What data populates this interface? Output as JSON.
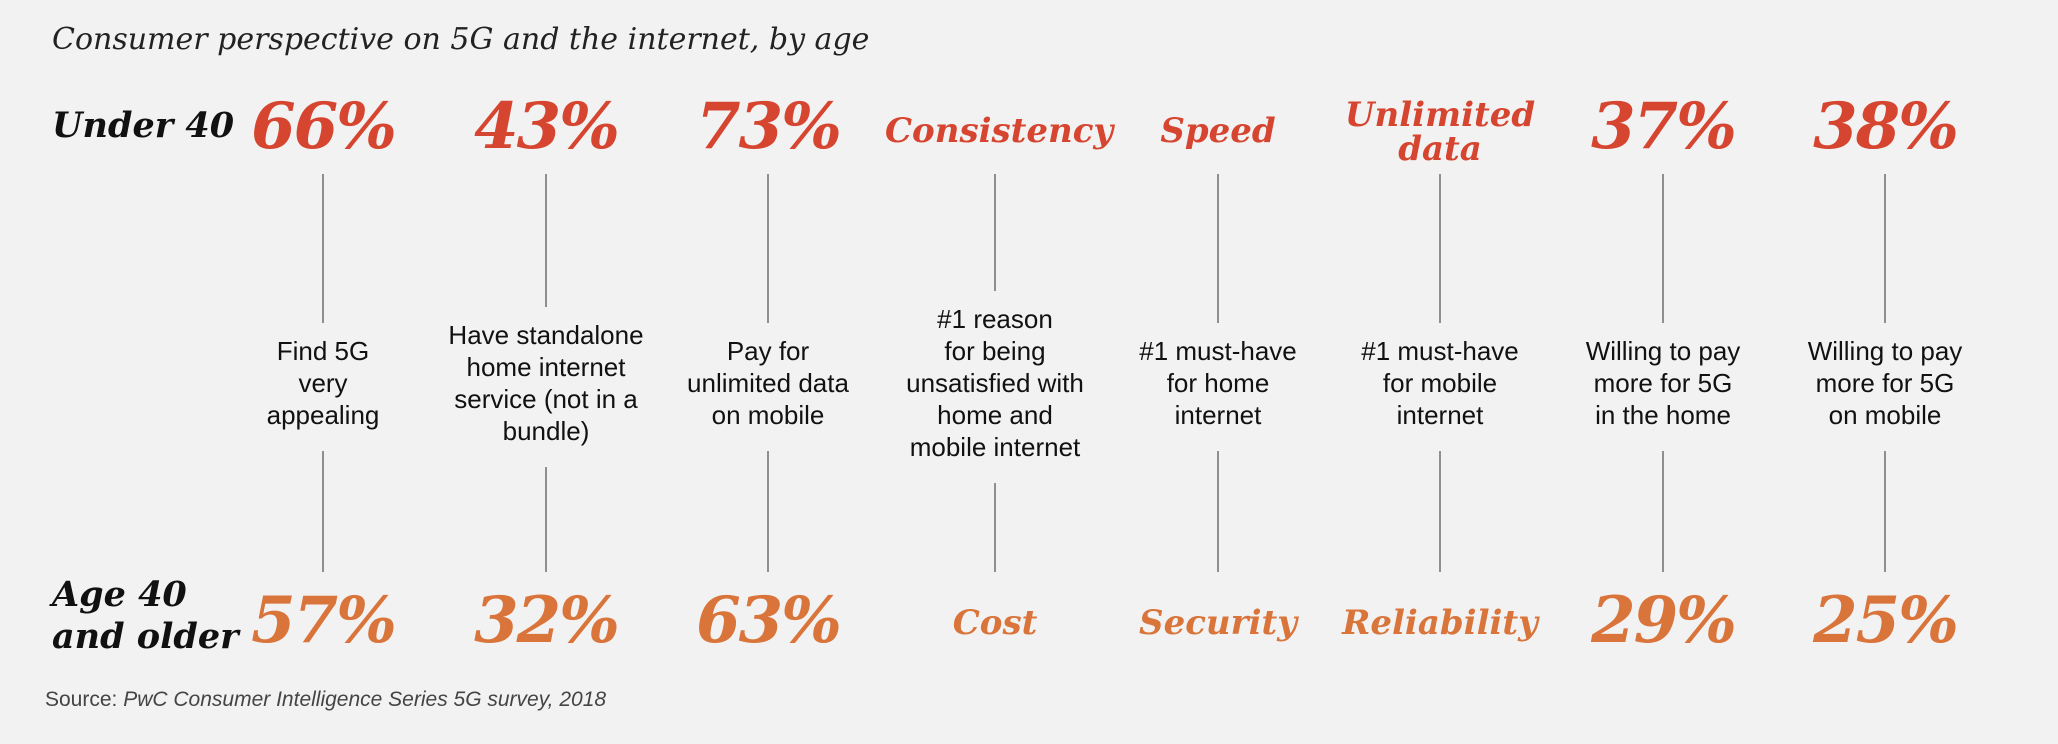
{
  "title": "Consumer perspective on 5G and the internet, by age",
  "row_labels": {
    "top": "Under 40",
    "bottom_line1": "Age 40",
    "bottom_line2": "and older"
  },
  "source": {
    "prefix": "Source: ",
    "text": "PwC Consumer Intelligence Series 5G survey, 2018"
  },
  "colors": {
    "under_40": "#d6452f",
    "age_40_older": "#d9743a",
    "connector": "#8f8f8f",
    "background": "#f2f2f2"
  },
  "chart_data": {
    "type": "table",
    "title": "Consumer perspective on 5G and the internet, by age",
    "groups": [
      "Under 40",
      "Age 40 and older"
    ],
    "columns": [
      {
        "metric": [
          "Find 5G",
          "very",
          "appealing"
        ],
        "under_40": "66%",
        "age_40_older": "57%",
        "under_40_value": 66,
        "age_40_older_value": 57
      },
      {
        "metric": [
          "Have standalone",
          "home internet",
          "service (not in a",
          "bundle)"
        ],
        "under_40": "43%",
        "age_40_older": "32%",
        "under_40_value": 43,
        "age_40_older_value": 32
      },
      {
        "metric": [
          "Pay for",
          "unlimited data",
          "on mobile"
        ],
        "under_40": "73%",
        "age_40_older": "63%",
        "under_40_value": 73,
        "age_40_older_value": 63
      },
      {
        "metric": [
          "#1 reason",
          "for being",
          "unsatisfied with",
          "home and",
          "mobile internet"
        ],
        "under_40": "Consistency",
        "age_40_older": "Cost"
      },
      {
        "metric": [
          "#1 must-have",
          "for home",
          "internet"
        ],
        "under_40": "Speed",
        "age_40_older": "Security"
      },
      {
        "metric": [
          "#1 must-have",
          "for mobile",
          "internet"
        ],
        "under_40": "Unlimited data",
        "age_40_older": "Reliability"
      },
      {
        "metric": [
          "Willing to pay",
          "more for 5G",
          "in the home"
        ],
        "under_40": "37%",
        "age_40_older": "29%",
        "under_40_value": 37,
        "age_40_older_value": 29
      },
      {
        "metric": [
          "Willing to pay",
          "more for 5G",
          "on mobile"
        ],
        "under_40": "38%",
        "age_40_older": "25%",
        "under_40_value": 38,
        "age_40_older_value": 25
      }
    ]
  }
}
